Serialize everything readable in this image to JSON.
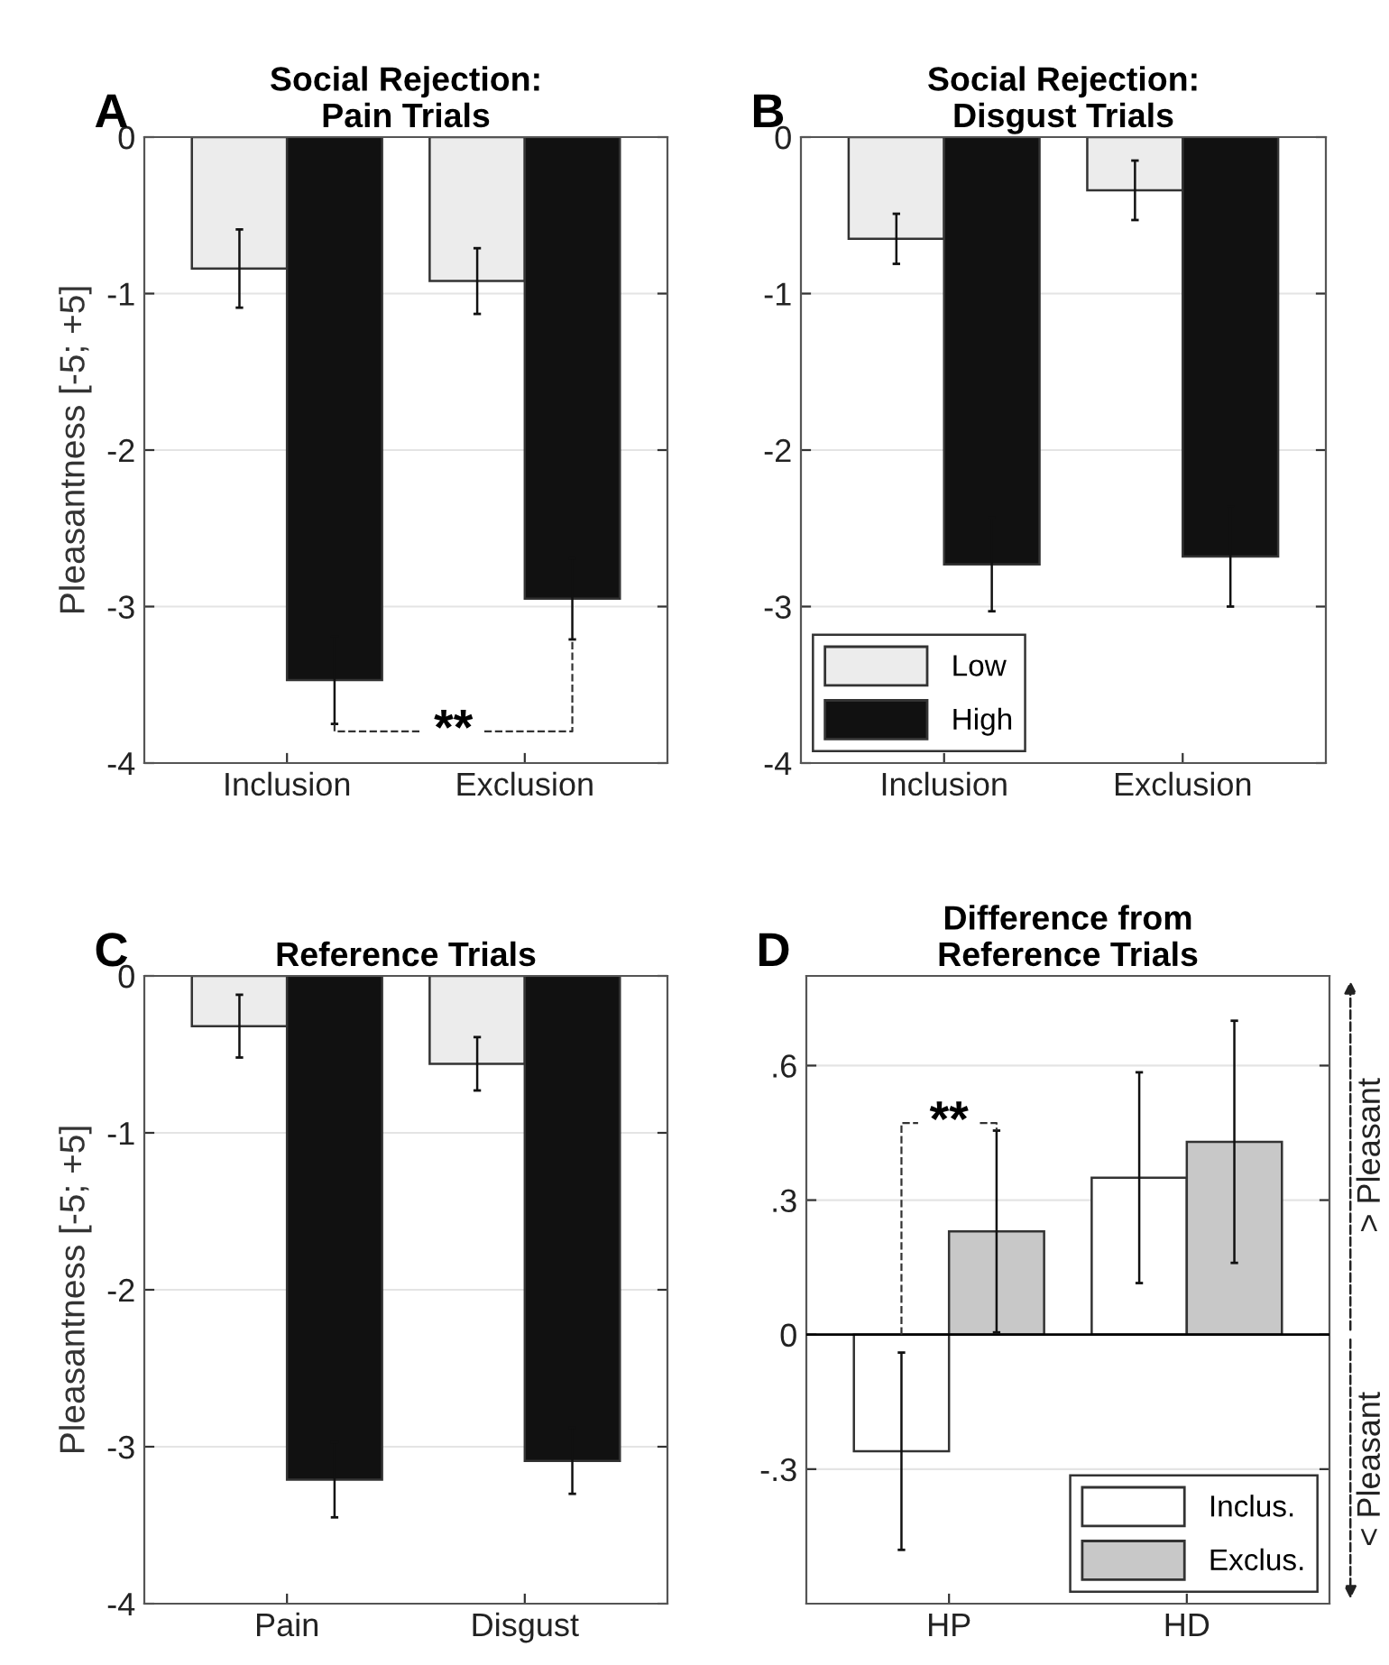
{
  "chart_data": [
    {
      "type": "bar",
      "title": "Social Rejection:\nPain Trials",
      "ylabel": "Pleasantness [-5; +5]",
      "categories": [
        "Inclusion",
        "Exclusion"
      ],
      "series": [
        {
          "color": "#ececec",
          "values": [
            -0.84,
            -0.92
          ],
          "errors": [
            0.25,
            0.21
          ]
        },
        {
          "color": "#111111",
          "values": [
            -3.47,
            -2.95
          ],
          "errors": [
            0.28,
            0.26
          ]
        }
      ],
      "ylim": [
        -4,
        0
      ],
      "yticks": [
        -4,
        -3,
        -2,
        -1,
        0
      ],
      "grid": "y",
      "annotations": [
        "A",
        "**"
      ]
    },
    {
      "type": "bar",
      "title": "Social Rejection:\nDisgust Trials",
      "categories": [
        "Inclusion",
        "Exclusion"
      ],
      "series": [
        {
          "name": "Low",
          "color": "#ececec",
          "values": [
            -0.65,
            -0.34
          ],
          "errors": [
            0.16,
            0.19
          ]
        },
        {
          "name": "High",
          "color": "#111111",
          "values": [
            -2.73,
            -2.68
          ],
          "errors": [
            0.3,
            0.32
          ]
        }
      ],
      "ylim": [
        -4,
        0
      ],
      "yticks": [
        -4,
        -3,
        -2,
        -1,
        0
      ],
      "grid": "y",
      "legend": "bottom left",
      "annotations": [
        "B"
      ]
    },
    {
      "type": "bar",
      "title": "Reference Trials",
      "ylabel": "Pleasantness [-5; +5]",
      "categories": [
        "Pain",
        "Disgust"
      ],
      "series": [
        {
          "color": "#ececec",
          "values": [
            -0.32,
            -0.56
          ],
          "errors": [
            0.2,
            0.17
          ]
        },
        {
          "color": "#111111",
          "values": [
            -3.21,
            -3.09
          ],
          "errors": [
            0.24,
            0.21
          ]
        }
      ],
      "ylim": [
        -4,
        0
      ],
      "yticks": [
        -4,
        -3,
        -2,
        -1,
        0
      ],
      "grid": "y",
      "annotations": [
        "C"
      ]
    },
    {
      "type": "bar",
      "title": "Difference from\nReference Trials",
      "categories": [
        "HP",
        "HD"
      ],
      "series": [
        {
          "name": "Inclus.",
          "color": "#ffffff",
          "values": [
            -0.26,
            0.35
          ],
          "errors": [
            0.22,
            0.235
          ]
        },
        {
          "name": "Exclus.",
          "color": "#c8c8c8",
          "values": [
            0.23,
            0.43
          ],
          "errors": [
            0.225,
            0.27
          ]
        }
      ],
      "ylim": [
        -0.6,
        0.8
      ],
      "yticks": [
        {
          "value": -0.3,
          "label": "-.3"
        },
        0,
        {
          "value": 0.3,
          "label": ".3"
        },
        {
          "value": 0.6,
          "label": ".6"
        }
      ],
      "grid": "y",
      "legend": "bottom right",
      "ref_lines": [
        {
          "axis": "y",
          "value": 0,
          "color": "#000000"
        }
      ],
      "annotations": [
        "D",
        "**",
        "> Pleasant",
        "< Pleasant"
      ]
    }
  ]
}
